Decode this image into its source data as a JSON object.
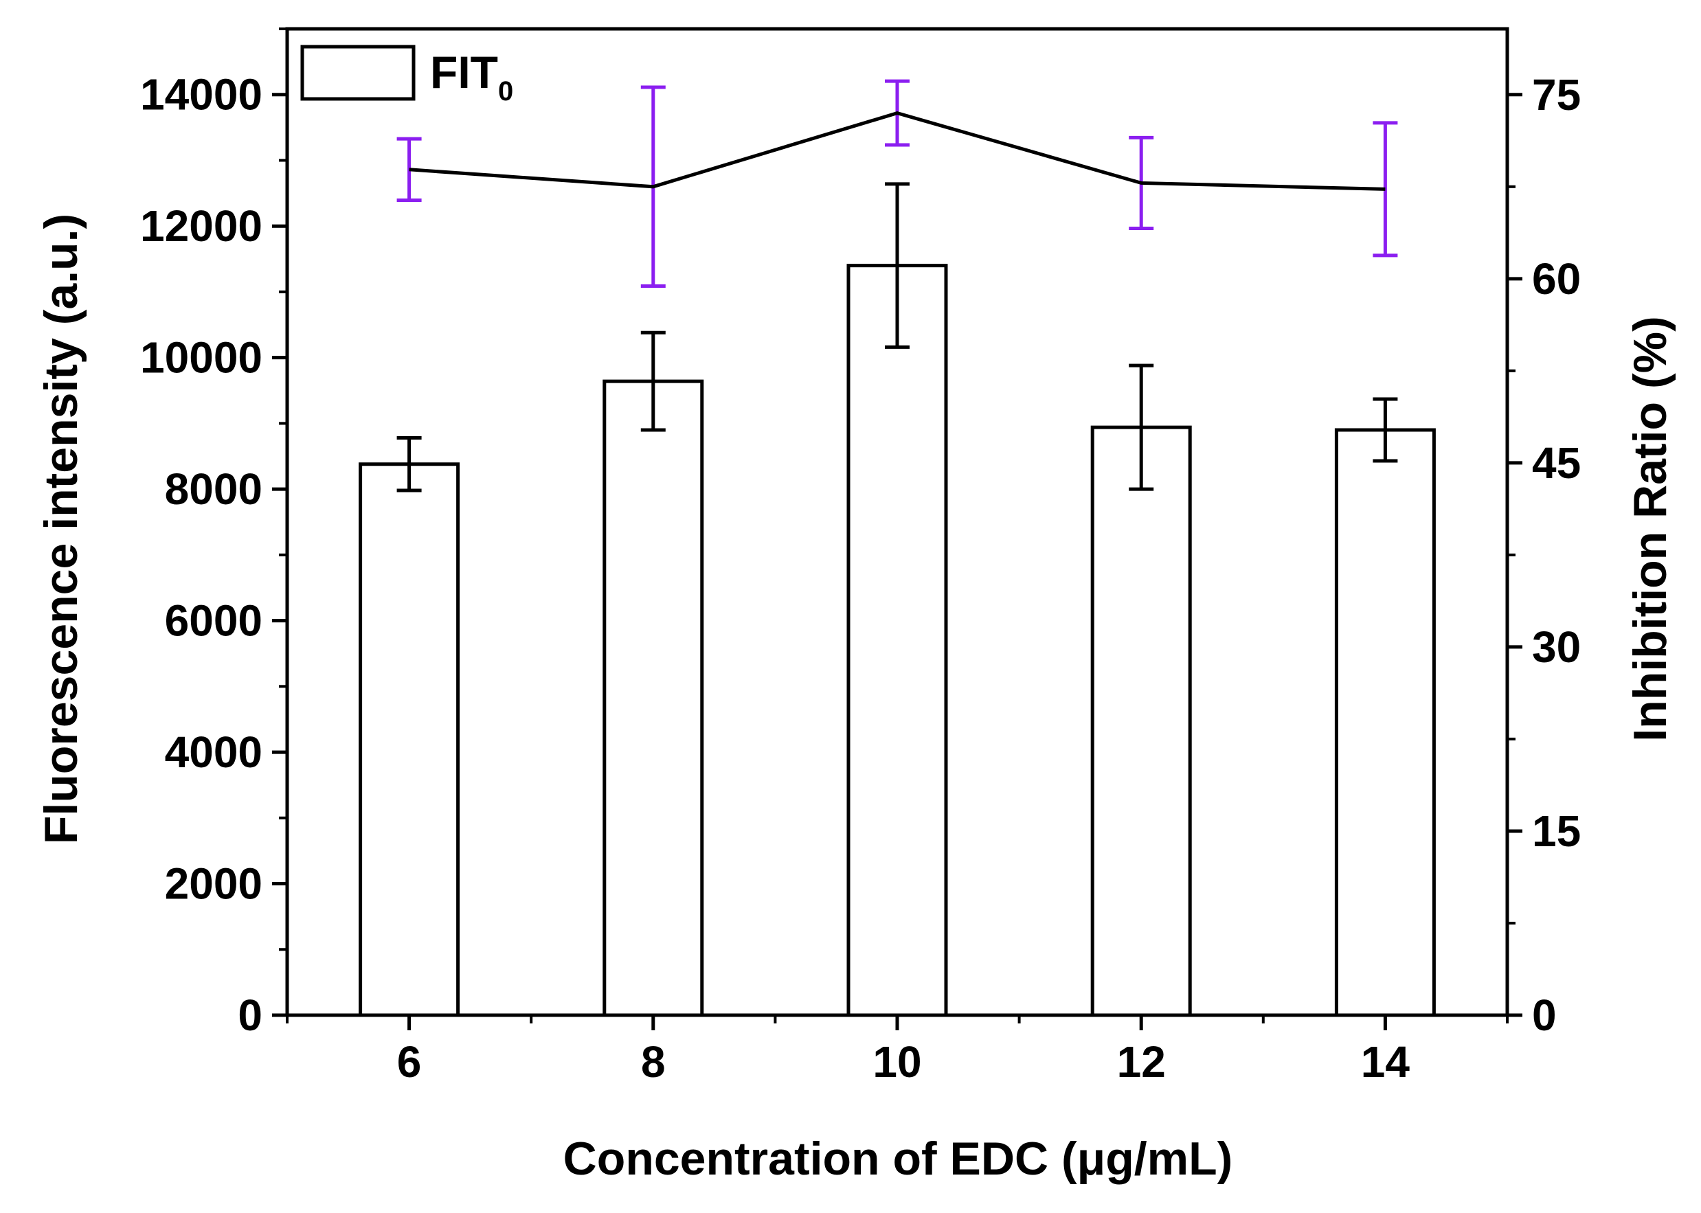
{
  "chart_data": {
    "type": "bar",
    "categories": [
      "6",
      "8",
      "10",
      "12",
      "14"
    ],
    "bar_series": {
      "name": "FIT",
      "name_subscript": "0",
      "values": [
        8380,
        9640,
        11400,
        8940,
        8900
      ],
      "errors": [
        400,
        740,
        1240,
        940,
        470
      ]
    },
    "line_series": {
      "name": "Inhibition Ratio",
      "values": [
        68.9,
        67.5,
        73.5,
        67.8,
        67.3
      ],
      "errors": [
        2.5,
        8.1,
        2.6,
        3.7,
        5.4
      ],
      "error_color": "#8b1ef0",
      "line_color": "#000000"
    },
    "xlabel": "Concentration of EDC (μg/mL)",
    "ylabel_left": "Fluorescence intensity (a.u.)",
    "ylabel_right": "Inhibition Ratio (%)",
    "xlim": [
      5,
      15
    ],
    "ylim_left": [
      0,
      15000
    ],
    "ylim_right": [
      0,
      80.36
    ],
    "yticks_left": [
      0,
      2000,
      4000,
      6000,
      8000,
      10000,
      12000,
      14000
    ],
    "yticks_right": [
      0,
      15,
      30,
      45,
      60,
      75
    ],
    "xticks": [
      6,
      8,
      10,
      12,
      14
    ],
    "legend_location": "top-left",
    "grid": false
  }
}
